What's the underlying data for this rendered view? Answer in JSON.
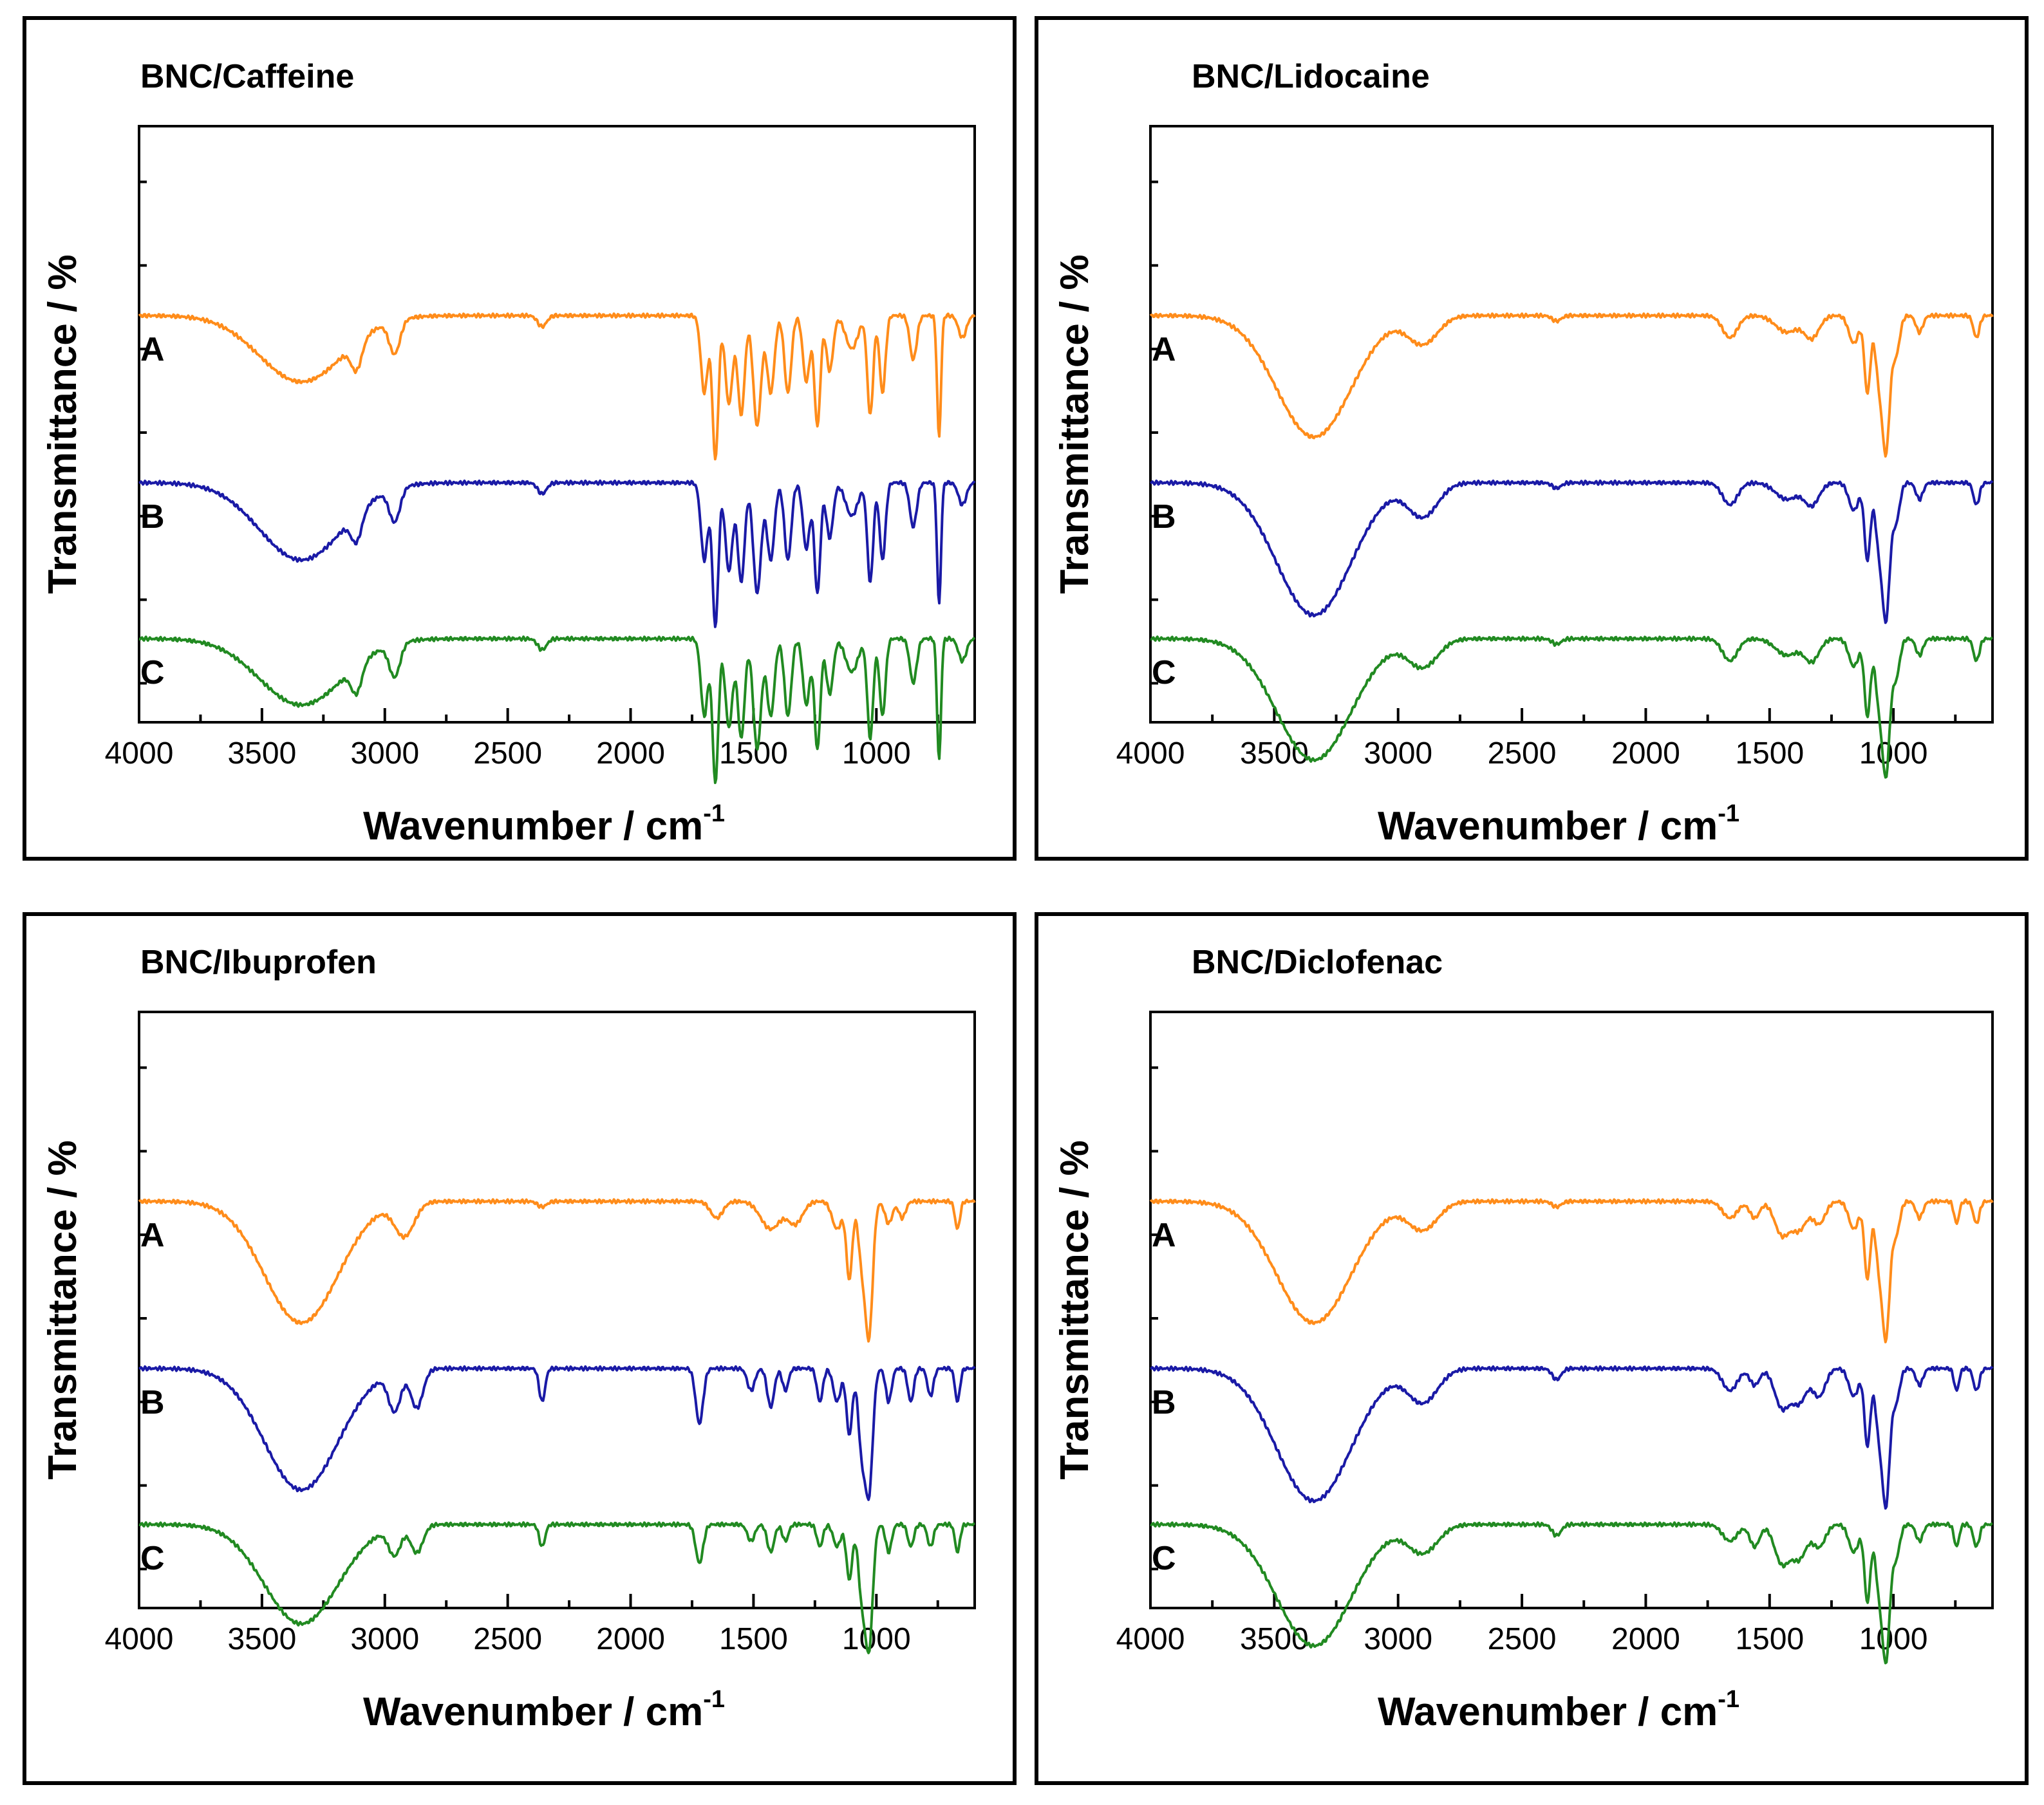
{
  "colors": {
    "A": "#ff8c1a",
    "B": "#1a1aa6",
    "C": "#218a21"
  },
  "chart_data": [
    {
      "type": "line",
      "title": "BNC/Caffeine",
      "xlabel": "Wavenumber / cm",
      "xlabel_sup": "-1",
      "ylabel": "Transmittance / %",
      "xlim": [
        4000,
        600
      ],
      "xticks": [
        4000,
        3500,
        3000,
        2500,
        2000,
        1500,
        1000
      ],
      "xtick_labels": [
        "4000",
        "3500",
        "3000",
        "2500",
        "2000",
        "1500",
        "1000"
      ],
      "ylim": [
        -7,
        100
      ],
      "y_ticks_labeled": false,
      "series": [
        {
          "name": "A",
          "offset": 66,
          "dips": [
            [
              3340,
              12,
              170
            ],
            [
              3115,
              5,
              22
            ],
            [
              2960,
              6,
              22
            ],
            [
              2360,
              2,
              18
            ],
            [
              1700,
              14,
              14
            ],
            [
              1655,
              26,
              12
            ],
            [
              1600,
              16,
              15
            ],
            [
              1550,
              18,
              14
            ],
            [
              1485,
              20,
              16
            ],
            [
              1430,
              14,
              15
            ],
            [
              1360,
              14,
              14
            ],
            [
              1285,
              12,
              14
            ],
            [
              1240,
              20,
              12
            ],
            [
              1190,
              10,
              14
            ],
            [
              1100,
              6,
              25
            ],
            [
              1025,
              18,
              12
            ],
            [
              975,
              14,
              12
            ],
            [
              850,
              8,
              14
            ],
            [
              745,
              22,
              8
            ],
            [
              650,
              4,
              16
            ]
          ]
        },
        {
          "name": "B",
          "offset": 36,
          "dips": [
            [
              3340,
              14,
              170
            ],
            [
              3115,
              5,
              22
            ],
            [
              2960,
              6,
              22
            ],
            [
              2360,
              2,
              18
            ],
            [
              1700,
              14,
              14
            ],
            [
              1655,
              26,
              12
            ],
            [
              1600,
              16,
              15
            ],
            [
              1550,
              18,
              14
            ],
            [
              1485,
              20,
              16
            ],
            [
              1430,
              14,
              15
            ],
            [
              1360,
              14,
              14
            ],
            [
              1285,
              12,
              14
            ],
            [
              1240,
              20,
              12
            ],
            [
              1190,
              10,
              14
            ],
            [
              1100,
              6,
              25
            ],
            [
              1025,
              18,
              12
            ],
            [
              975,
              14,
              12
            ],
            [
              850,
              8,
              14
            ],
            [
              745,
              22,
              8
            ],
            [
              650,
              4,
              16
            ]
          ]
        },
        {
          "name": "C",
          "offset": 8,
          "dips": [
            [
              3340,
              12,
              170
            ],
            [
              3115,
              5,
              22
            ],
            [
              2960,
              6,
              22
            ],
            [
              2360,
              2,
              18
            ],
            [
              1700,
              14,
              14
            ],
            [
              1655,
              26,
              12
            ],
            [
              1600,
              16,
              15
            ],
            [
              1550,
              18,
              14
            ],
            [
              1485,
              20,
              16
            ],
            [
              1430,
              14,
              15
            ],
            [
              1360,
              14,
              14
            ],
            [
              1285,
              12,
              14
            ],
            [
              1240,
              20,
              12
            ],
            [
              1190,
              10,
              14
            ],
            [
              1100,
              6,
              25
            ],
            [
              1025,
              18,
              12
            ],
            [
              975,
              14,
              12
            ],
            [
              850,
              8,
              14
            ],
            [
              745,
              22,
              8
            ],
            [
              650,
              4,
              16
            ]
          ]
        }
      ]
    },
    {
      "type": "line",
      "title": "BNC/Lidocaine",
      "xlabel": "Wavenumber / cm",
      "xlabel_sup": "-1",
      "ylabel": "Transmittance / %",
      "xlim": [
        4000,
        600
      ],
      "xticks": [
        4000,
        3500,
        3000,
        2500,
        2000,
        1500,
        1000
      ],
      "xtick_labels": [
        "4000",
        "3500",
        "3000",
        "2500",
        "2000",
        "1500",
        "1000"
      ],
      "ylim": [
        -7,
        100
      ],
      "y_ticks_labeled": false,
      "series": [
        {
          "name": "A",
          "offset": 66,
          "dips": [
            [
              3340,
              22,
              150
            ],
            [
              2900,
              5,
              60
            ],
            [
              2360,
              1,
              18
            ],
            [
              1660,
              4,
              30
            ],
            [
              1430,
              3,
              45
            ],
            [
              1330,
              4,
              30
            ],
            [
              1160,
              5,
              20
            ],
            [
              1105,
              14,
              12
            ],
            [
              1060,
              10,
              14
            ],
            [
              1030,
              24,
              15
            ],
            [
              990,
              7,
              15
            ],
            [
              895,
              3,
              14
            ],
            [
              665,
              4,
              12
            ]
          ]
        },
        {
          "name": "B",
          "offset": 36,
          "dips": [
            [
              3340,
              24,
              150
            ],
            [
              2900,
              6,
              60
            ],
            [
              2360,
              1,
              18
            ],
            [
              1660,
              4,
              30
            ],
            [
              1430,
              3,
              45
            ],
            [
              1330,
              4,
              30
            ],
            [
              1160,
              5,
              20
            ],
            [
              1105,
              14,
              12
            ],
            [
              1060,
              10,
              14
            ],
            [
              1030,
              24,
              15
            ],
            [
              990,
              7,
              15
            ],
            [
              895,
              3,
              14
            ],
            [
              665,
              4,
              12
            ]
          ]
        },
        {
          "name": "C",
          "offset": 8,
          "dips": [
            [
              3340,
              22,
              150
            ],
            [
              2900,
              5,
              60
            ],
            [
              2360,
              1,
              18
            ],
            [
              1660,
              4,
              30
            ],
            [
              1430,
              3,
              45
            ],
            [
              1330,
              4,
              30
            ],
            [
              1160,
              5,
              20
            ],
            [
              1105,
              14,
              12
            ],
            [
              1060,
              10,
              14
            ],
            [
              1030,
              24,
              15
            ],
            [
              990,
              7,
              15
            ],
            [
              895,
              3,
              14
            ],
            [
              665,
              4,
              12
            ]
          ]
        }
      ]
    },
    {
      "type": "line",
      "title": "BNC/Ibuprofen",
      "xlabel": "Wavenumber / cm",
      "xlabel_sup": "-1",
      "ylabel": "Transmittance / %",
      "xlim": [
        4000,
        600
      ],
      "xticks": [
        4000,
        3500,
        3000,
        2500,
        2000,
        1500,
        1000
      ],
      "xtick_labels": [
        "4000",
        "3500",
        "3000",
        "2500",
        "2000",
        "1500",
        "1000"
      ],
      "ylim": [
        -7,
        100
      ],
      "y_ticks_labeled": false,
      "series": [
        {
          "name": "A",
          "offset": 66,
          "dips": [
            [
              3340,
              22,
              150
            ],
            [
              2920,
              6,
              40
            ],
            [
              2360,
              1,
              18
            ],
            [
              1650,
              3,
              25
            ],
            [
              1430,
              5,
              40
            ],
            [
              1330,
              4,
              30
            ],
            [
              1160,
              5,
              20
            ],
            [
              1110,
              14,
              12
            ],
            [
              1060,
              10,
              14
            ],
            [
              1030,
              24,
              15
            ],
            [
              950,
              4,
              15
            ],
            [
              895,
              3,
              14
            ],
            [
              670,
              5,
              10
            ]
          ]
        },
        {
          "name": "B",
          "offset": 36,
          "dips": [
            [
              3340,
              22,
              150
            ],
            [
              2960,
              7,
              25
            ],
            [
              2870,
              7,
              25
            ],
            [
              2360,
              6,
              12
            ],
            [
              1720,
              10,
              15
            ],
            [
              1510,
              4,
              15
            ],
            [
              1430,
              7,
              14
            ],
            [
              1370,
              4,
              12
            ],
            [
              1230,
              6,
              12
            ],
            [
              1160,
              6,
              15
            ],
            [
              1110,
              12,
              12
            ],
            [
              1060,
              14,
              14
            ],
            [
              1030,
              22,
              15
            ],
            [
              950,
              6,
              12
            ],
            [
              860,
              6,
              12
            ],
            [
              780,
              5,
              12
            ],
            [
              670,
              6,
              10
            ]
          ]
        },
        {
          "name": "C",
          "offset": 8,
          "dips": [
            [
              3340,
              18,
              150
            ],
            [
              2960,
              5,
              25
            ],
            [
              2870,
              5,
              25
            ],
            [
              2360,
              4,
              12
            ],
            [
              1720,
              7,
              15
            ],
            [
              1510,
              3,
              15
            ],
            [
              1430,
              5,
              14
            ],
            [
              1370,
              3,
              12
            ],
            [
              1230,
              4,
              12
            ],
            [
              1160,
              4,
              15
            ],
            [
              1110,
              10,
              12
            ],
            [
              1060,
              12,
              14
            ],
            [
              1030,
              22,
              15
            ],
            [
              950,
              5,
              12
            ],
            [
              860,
              4,
              12
            ],
            [
              780,
              4,
              12
            ],
            [
              670,
              5,
              10
            ]
          ]
        }
      ]
    },
    {
      "type": "line",
      "title": "BNC/Diclofenac",
      "xlabel": "Wavenumber / cm",
      "xlabel_sup": "-1",
      "ylabel": "Transmittance / %",
      "xlim": [
        4000,
        600
      ],
      "xticks": [
        4000,
        3500,
        3000,
        2500,
        2000,
        1500,
        1000
      ],
      "xtick_labels": [
        "4000",
        "3500",
        "3000",
        "2500",
        "2000",
        "1500",
        "1000"
      ],
      "ylim": [
        -7,
        100
      ],
      "y_ticks_labeled": false,
      "series": [
        {
          "name": "A",
          "offset": 66,
          "dips": [
            [
              3340,
              22,
              150
            ],
            [
              2900,
              5,
              60
            ],
            [
              2360,
              1,
              18
            ],
            [
              1660,
              3,
              30
            ],
            [
              1560,
              3,
              20
            ],
            [
              1450,
              6,
              30
            ],
            [
              1380,
              5,
              30
            ],
            [
              1300,
              4,
              25
            ],
            [
              1160,
              5,
              20
            ],
            [
              1105,
              14,
              12
            ],
            [
              1060,
              10,
              14
            ],
            [
              1030,
              24,
              15
            ],
            [
              990,
              6,
              15
            ],
            [
              895,
              3,
              14
            ],
            [
              745,
              4,
              10
            ],
            [
              665,
              4,
              12
            ]
          ]
        },
        {
          "name": "B",
          "offset": 36,
          "dips": [
            [
              3340,
              24,
              150
            ],
            [
              2900,
              6,
              60
            ],
            [
              2360,
              2,
              18
            ],
            [
              1660,
              4,
              30
            ],
            [
              1560,
              3,
              20
            ],
            [
              1450,
              7,
              30
            ],
            [
              1380,
              6,
              30
            ],
            [
              1300,
              5,
              25
            ],
            [
              1160,
              5,
              20
            ],
            [
              1105,
              14,
              12
            ],
            [
              1060,
              10,
              14
            ],
            [
              1030,
              24,
              15
            ],
            [
              990,
              6,
              15
            ],
            [
              895,
              3,
              14
            ],
            [
              745,
              4,
              10
            ],
            [
              665,
              4,
              12
            ]
          ]
        },
        {
          "name": "C",
          "offset": 8,
          "dips": [
            [
              3340,
              22,
              150
            ],
            [
              2900,
              5,
              60
            ],
            [
              2360,
              2,
              18
            ],
            [
              1660,
              3,
              30
            ],
            [
              1560,
              4,
              20
            ],
            [
              1450,
              7,
              30
            ],
            [
              1380,
              6,
              30
            ],
            [
              1300,
              4,
              25
            ],
            [
              1160,
              5,
              20
            ],
            [
              1105,
              14,
              12
            ],
            [
              1060,
              10,
              14
            ],
            [
              1030,
              24,
              15
            ],
            [
              990,
              6,
              15
            ],
            [
              895,
              3,
              14
            ],
            [
              745,
              4,
              10
            ],
            [
              665,
              4,
              12
            ]
          ]
        }
      ]
    }
  ]
}
